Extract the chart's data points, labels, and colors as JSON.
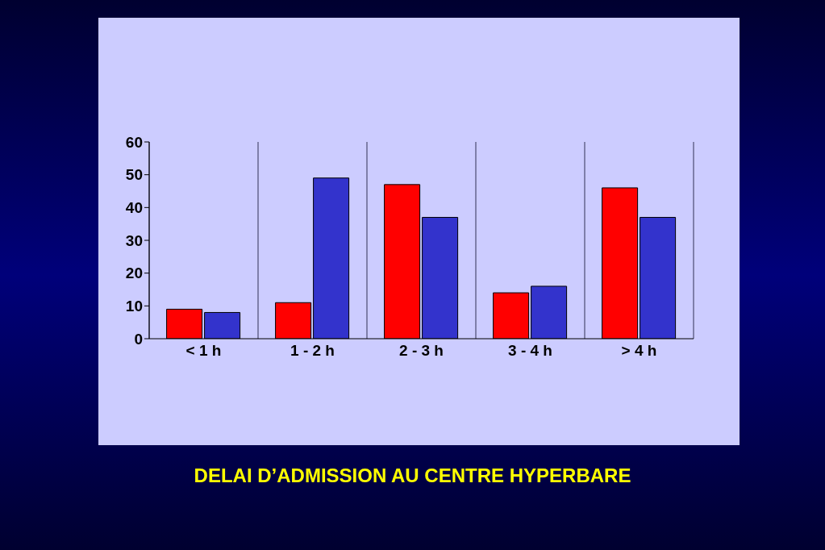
{
  "chart_data": {
    "type": "bar",
    "title": "DELAI D’ADMISSION AU CENTRE HYPERBARE",
    "categories": [
      "< 1 h",
      "1 - 2 h",
      "2 - 3 h",
      "3 - 4 h",
      "> 4 h"
    ],
    "series": [
      {
        "color": "#ff0000",
        "values": [
          9,
          11,
          47,
          14,
          46
        ]
      },
      {
        "color": "#3333cc",
        "values": [
          8,
          49,
          37,
          16,
          37
        ]
      }
    ],
    "ylim": [
      0,
      60
    ],
    "yticks": [
      0,
      10,
      20,
      30,
      40,
      50,
      60
    ],
    "grid": "x"
  }
}
